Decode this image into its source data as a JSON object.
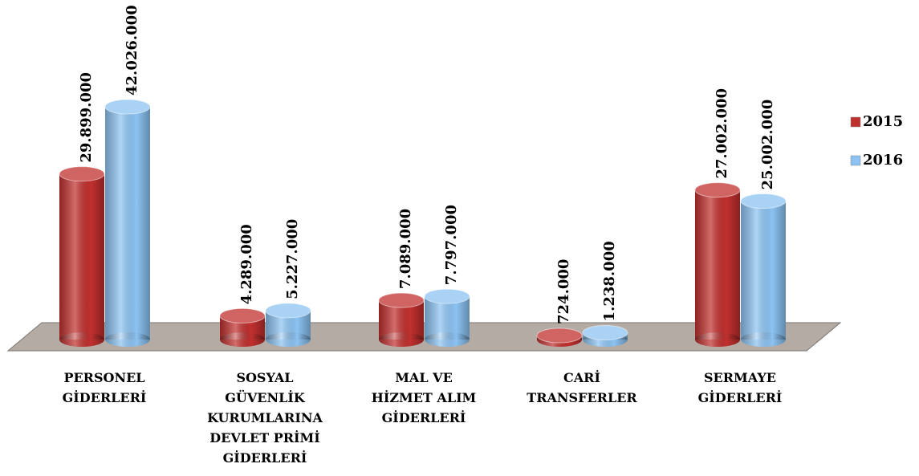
{
  "chart_data": {
    "type": "bar",
    "categories": [
      "PERSONEL\nGİDERLERİ",
      "SOSYAL\nGÜVENLİK\nKURUMLARINA\nDEVLET PRİMİ\nGİDERLERİ",
      "MAL VE\nHİZMET ALIM\nGİDERLERİ",
      "CARİ\nTRANSFERLER",
      "SERMAYE\nGİDERLERİ"
    ],
    "series": [
      {
        "name": "2015",
        "color": "#c0302e",
        "values": [
          29899000,
          4289000,
          7089000,
          724000,
          27002000
        ],
        "value_labels": [
          "29.899.000",
          "4.289.000",
          "7.089.000",
          "724.000",
          "27.002.000"
        ]
      },
      {
        "name": "2016",
        "color": "#8cc3f2",
        "values": [
          42026000,
          5227000,
          7797000,
          1238000,
          25002000
        ],
        "value_labels": [
          "42.026.000",
          "5.227.000",
          "7.797.000",
          "1.238.000",
          "25.002.000"
        ]
      }
    ],
    "legend": "right"
  }
}
